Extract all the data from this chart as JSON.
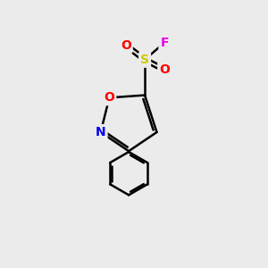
{
  "background_color": "#ebebeb",
  "atom_colors": {
    "C": "#000000",
    "N": "#0000ee",
    "O": "#ff0000",
    "S": "#cccc00",
    "F": "#ee00ee"
  },
  "bond_color": "#000000",
  "bond_width": 1.8,
  "fig_size": [
    3.0,
    3.0
  ],
  "dpi": 100
}
